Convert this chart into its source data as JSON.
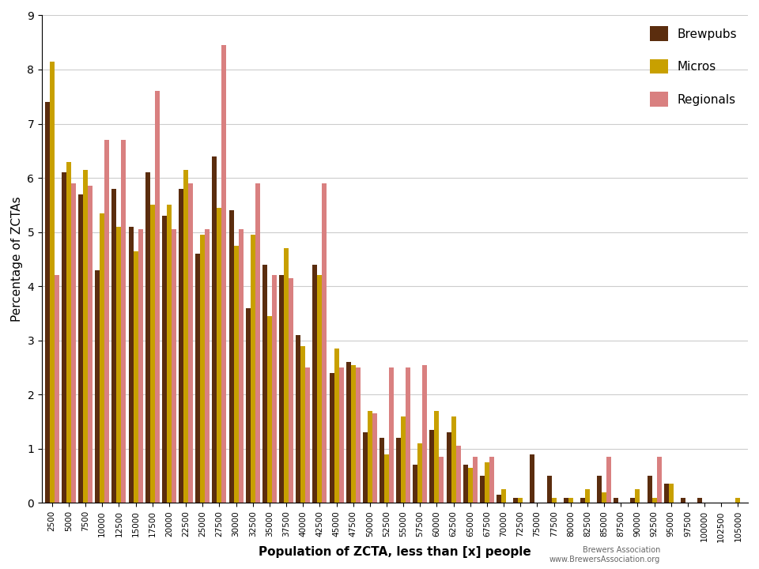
{
  "categories": [
    2500,
    5000,
    7500,
    10000,
    12500,
    15000,
    17500,
    20000,
    22500,
    25000,
    27500,
    30000,
    32500,
    35000,
    37500,
    40000,
    42500,
    45000,
    47500,
    50000,
    52500,
    55000,
    57500,
    60000,
    62500,
    65000,
    67500,
    70000,
    72500,
    75000,
    77500,
    80000,
    82500,
    85000,
    87500,
    90000,
    92500,
    95000,
    97500,
    100000,
    102500,
    105000
  ],
  "brewpubs": [
    7.4,
    6.1,
    5.7,
    4.3,
    5.8,
    5.1,
    6.1,
    5.3,
    5.8,
    4.6,
    6.4,
    5.4,
    3.6,
    4.4,
    4.2,
    3.1,
    4.4,
    2.4,
    2.6,
    1.3,
    1.2,
    1.2,
    0.7,
    1.35,
    1.3,
    0.7,
    0.5,
    0.15,
    0.1,
    0.9,
    0.5,
    0.1,
    0.1,
    0.5,
    0.1,
    0.1,
    0.5,
    0.35,
    0.1,
    0.1,
    0.0,
    0.0
  ],
  "micros": [
    8.15,
    6.3,
    6.15,
    5.35,
    5.1,
    4.65,
    5.5,
    5.5,
    6.15,
    4.95,
    5.45,
    4.75,
    4.95,
    3.45,
    4.7,
    2.9,
    4.2,
    2.85,
    2.55,
    1.7,
    0.9,
    1.6,
    1.1,
    1.7,
    1.6,
    0.65,
    0.75,
    0.25,
    0.1,
    0.0,
    0.1,
    0.1,
    0.25,
    0.2,
    0.0,
    0.25,
    0.1,
    0.35,
    0.0,
    0.0,
    0.0,
    0.1
  ],
  "regionals": [
    4.2,
    5.9,
    5.85,
    6.7,
    6.7,
    5.05,
    7.6,
    5.05,
    5.9,
    5.05,
    8.45,
    5.05,
    5.9,
    4.2,
    4.15,
    2.5,
    5.9,
    2.5,
    2.5,
    1.65,
    2.5,
    2.5,
    2.55,
    0.85,
    1.05,
    0.85,
    0.85,
    0.0,
    0.0,
    0.0,
    0.0,
    0.0,
    0.0,
    0.85,
    0.0,
    0.0,
    0.85,
    0.0,
    0.0,
    0.0,
    0.0,
    0.0
  ],
  "brewpubs_color": "#5b2d0e",
  "micros_color": "#c8a000",
  "regionals_color": "#d98080",
  "xlabel": "Population of ZCTA, less than [x] people",
  "ylabel": "Percentage of ZCTAs",
  "ylim": [
    0,
    9
  ],
  "yticks": [
    0,
    1,
    2,
    3,
    4,
    5,
    6,
    7,
    8,
    9
  ],
  "legend_labels": [
    "Brewpubs",
    "Micros",
    "Regionals"
  ],
  "background_color": "#ffffff",
  "grid_color": "#cccccc"
}
